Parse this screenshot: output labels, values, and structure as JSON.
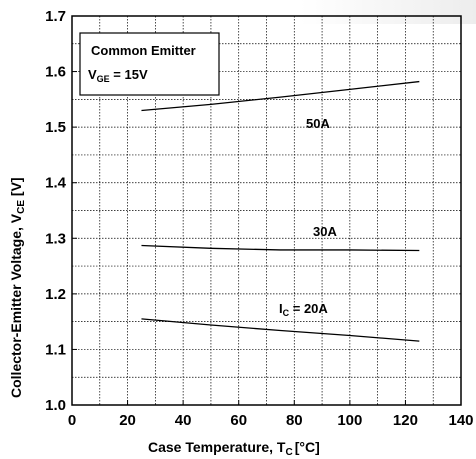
{
  "chart_data": {
    "type": "line",
    "xlabel": "Case Temperature, T",
    "xlabel_sub": "C",
    "xlabel_unit": "[°C]",
    "ylabel": "Collector-Emitter Voltage, V",
    "ylabel_sub": "CE",
    "ylabel_unit": " [V]",
    "xlim": [
      0,
      140
    ],
    "ylim": [
      1.0,
      1.7
    ],
    "x_ticks": [
      0,
      20,
      40,
      60,
      80,
      100,
      120,
      140
    ],
    "y_ticks": [
      1.0,
      1.1,
      1.2,
      1.3,
      1.4,
      1.5,
      1.6,
      1.7
    ],
    "x_tick_labels": [
      "0",
      "20",
      "40",
      "60",
      "80",
      "100",
      "120",
      "140"
    ],
    "y_tick_labels": [
      "1.0",
      "1.1",
      "1.2",
      "1.3",
      "1.4",
      "1.5",
      "1.6",
      "1.7"
    ],
    "grid": true,
    "legend_box": {
      "line1": "Common Emitter",
      "line2_main": "V",
      "line2_sub": "GE",
      "line2_tail": " = 15V"
    },
    "series": [
      {
        "name": "50A",
        "x": [
          25,
          50,
          75,
          100,
          125
        ],
        "y": [
          1.53,
          1.541,
          1.554,
          1.568,
          1.582
        ]
      },
      {
        "name": "30A",
        "x": [
          25,
          50,
          75,
          100,
          125
        ],
        "y": [
          1.287,
          1.282,
          1.279,
          1.279,
          1.278
        ]
      },
      {
        "name": "I_C = 20A",
        "x": [
          25,
          50,
          75,
          100,
          125
        ],
        "y": [
          1.155,
          1.144,
          1.134,
          1.125,
          1.115
        ]
      }
    ],
    "series_labels": {
      "s50": "50A",
      "s30": "30A",
      "s20_main": "I",
      "s20_sub": "C",
      "s20_tail": " = 20A"
    }
  }
}
